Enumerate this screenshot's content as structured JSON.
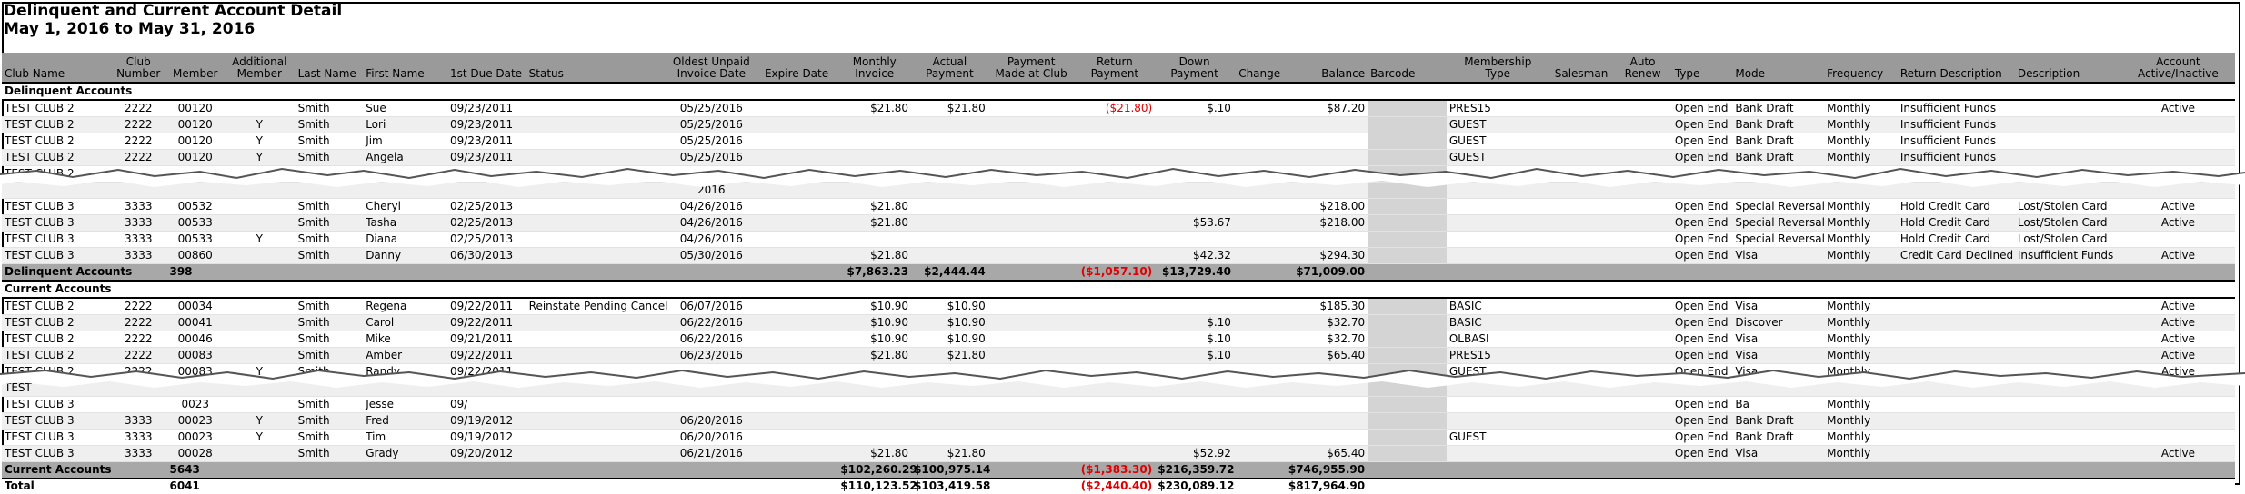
{
  "report": {
    "title": "Delinquent and Current Account Detail",
    "date_range": "May 1, 2016 to May 31, 2016"
  },
  "columns": [
    "Club Name",
    "Club Number",
    "Member",
    "Additional Member",
    "Last Name",
    "First Name",
    "1st Due Date",
    "Status",
    "Oldest Unpaid Invoice Date",
    "Expire Date",
    "Monthly Invoice",
    "Actual Payment",
    "Payment Made at Club",
    "Return Payment",
    "Down Payment",
    "Change",
    "Balance",
    "Barcode",
    "Membership Type",
    "Salesman",
    "Auto Renew",
    "Type",
    "Mode",
    "Frequency",
    "Return Description",
    "Description",
    "Account Active/Inactive"
  ],
  "header_labels": {
    "club_name": "Club Name",
    "club_number_1": "Club",
    "club_number_2": "Number",
    "member": "Member",
    "additional_1": "Additional",
    "additional_2": "Member",
    "last_name": "Last Name",
    "first_name": "First Name",
    "first_due": "1st Due Date",
    "status": "Status",
    "oldest_1": "Oldest Unpaid",
    "oldest_2": "Invoice Date",
    "expire": "Expire Date",
    "monthly_1": "Monthly",
    "monthly_2": "Invoice",
    "actual_1": "Actual",
    "actual_2": "Payment",
    "made_1": "Payment",
    "made_2": "Made at Club",
    "return_1": "Return",
    "return_2": "Payment",
    "down_1": "Down",
    "down_2": "Payment",
    "change": "Change",
    "balance": "Balance",
    "barcode": "Barcode",
    "mtype_1": "Membership",
    "mtype_2": "Type",
    "salesman": "Salesman",
    "auto_1": "Auto",
    "auto_2": "Renew",
    "type": "Type",
    "mode": "Mode",
    "frequency": "Frequency",
    "return_desc": "Return Description",
    "description": "Description",
    "active_1": "Account",
    "active_2": "Active/Inactive"
  },
  "sections": {
    "delinquent": {
      "label": "Delinquent Accounts",
      "rows": [
        {
          "club": "TEST CLUB 2",
          "num": "2222",
          "member": "00120",
          "add": "",
          "last": "Smith",
          "first": "Sue",
          "due": "09/23/2011",
          "status": "",
          "oldest": "05/25/2016",
          "expire": "",
          "monthly": "$21.80",
          "actual": "$21.80",
          "made": "",
          "ret": "($21.80)",
          "down": "$.10",
          "change": "",
          "balance": "$87.20",
          "mtype": "PRES15",
          "sales": "",
          "auto": "",
          "type": "Open End",
          "mode": "Bank Draft",
          "freq": "Monthly",
          "retdesc": "Insufficient Funds",
          "desc": "",
          "active": "Active"
        },
        {
          "club": "TEST CLUB 2",
          "num": "2222",
          "member": "00120",
          "add": "Y",
          "last": "Smith",
          "first": "Lori",
          "due": "09/23/2011",
          "status": "",
          "oldest": "05/25/2016",
          "expire": "",
          "monthly": "",
          "actual": "",
          "made": "",
          "ret": "",
          "down": "",
          "change": "",
          "balance": "",
          "mtype": "GUEST",
          "sales": "",
          "auto": "",
          "type": "Open End",
          "mode": "Bank Draft",
          "freq": "Monthly",
          "retdesc": "Insufficient Funds",
          "desc": "",
          "active": ""
        },
        {
          "club": "TEST CLUB 2",
          "num": "2222",
          "member": "00120",
          "add": "Y",
          "last": "Smith",
          "first": "Jim",
          "due": "09/23/2011",
          "status": "",
          "oldest": "05/25/2016",
          "expire": "",
          "monthly": "",
          "actual": "",
          "made": "",
          "ret": "",
          "down": "",
          "change": "",
          "balance": "",
          "mtype": "GUEST",
          "sales": "",
          "auto": "",
          "type": "Open End",
          "mode": "Bank Draft",
          "freq": "Monthly",
          "retdesc": "Insufficient Funds",
          "desc": "",
          "active": ""
        },
        {
          "club": "TEST CLUB 2",
          "num": "2222",
          "member": "00120",
          "add": "Y",
          "last": "Smith",
          "first": "Angela",
          "due": "09/23/2011",
          "status": "",
          "oldest": "05/25/2016",
          "expire": "",
          "monthly": "",
          "actual": "",
          "made": "",
          "ret": "",
          "down": "",
          "change": "",
          "balance": "",
          "mtype": "GUEST",
          "sales": "",
          "auto": "",
          "type": "Open End",
          "mode": "Bank Draft",
          "freq": "Monthly",
          "retdesc": "Insufficient Funds",
          "desc": "",
          "active": ""
        },
        {
          "club": "TEST CLUB 2",
          "num": "",
          "member": "",
          "add": "",
          "last": "",
          "first": "",
          "due": "",
          "status": "",
          "oldest": "",
          "expire": "",
          "monthly": "",
          "actual": "",
          "made": "",
          "ret": "",
          "down": "",
          "change": "",
          "balance": "",
          "mtype": "",
          "sales": "",
          "auto": "",
          "type": "",
          "mode": "",
          "freq": "",
          "retdesc": "",
          "desc": "",
          "active": ""
        },
        {
          "club": "",
          "num": "",
          "member": "",
          "add": "",
          "last": "",
          "first": "",
          "due": "",
          "status": "",
          "oldest": "2016",
          "expire": "",
          "monthly": "",
          "actual": "",
          "made": "",
          "ret": "",
          "down": "",
          "change": "",
          "balance": "",
          "mtype": "",
          "sales": "",
          "auto": "",
          "type": "",
          "mode": "",
          "freq": "",
          "retdesc": "",
          "desc": "",
          "active": ""
        },
        {
          "club": "TEST CLUB 3",
          "num": "3333",
          "member": "00532",
          "add": "",
          "last": "Smith",
          "first": "Cheryl",
          "due": "02/25/2013",
          "status": "",
          "oldest": "04/26/2016",
          "expire": "",
          "monthly": "$21.80",
          "actual": "",
          "made": "",
          "ret": "",
          "down": "",
          "change": "",
          "balance": "$218.00",
          "mtype": "",
          "sales": "",
          "auto": "",
          "type": "Open End",
          "mode": "Special Reversal",
          "freq": "Monthly",
          "retdesc": "Hold Credit Card",
          "desc": "Lost/Stolen Card",
          "active": "Active"
        },
        {
          "club": "TEST CLUB 3",
          "num": "3333",
          "member": "00533",
          "add": "",
          "last": "Smith",
          "first": "Tasha",
          "due": "02/25/2013",
          "status": "",
          "oldest": "04/26/2016",
          "expire": "",
          "monthly": "$21.80",
          "actual": "",
          "made": "",
          "ret": "",
          "down": "$53.67",
          "change": "",
          "balance": "$218.00",
          "mtype": "",
          "sales": "",
          "auto": "",
          "type": "Open End",
          "mode": "Special Reversal",
          "freq": "Monthly",
          "retdesc": "Hold Credit Card",
          "desc": "Lost/Stolen Card",
          "active": "Active"
        },
        {
          "club": "TEST CLUB 3",
          "num": "3333",
          "member": "00533",
          "add": "Y",
          "last": "Smith",
          "first": "Diana",
          "due": "02/25/2013",
          "status": "",
          "oldest": "04/26/2016",
          "expire": "",
          "monthly": "",
          "actual": "",
          "made": "",
          "ret": "",
          "down": "",
          "change": "",
          "balance": "",
          "mtype": "",
          "sales": "",
          "auto": "",
          "type": "Open End",
          "mode": "Special Reversal",
          "freq": "Monthly",
          "retdesc": "Hold Credit Card",
          "desc": "Lost/Stolen Card",
          "active": ""
        },
        {
          "club": "TEST CLUB 3",
          "num": "3333",
          "member": "00860",
          "add": "",
          "last": "Smith",
          "first": "Danny",
          "due": "06/30/2013",
          "status": "",
          "oldest": "05/30/2016",
          "expire": "",
          "monthly": "$21.80",
          "actual": "",
          "made": "",
          "ret": "",
          "down": "$42.32",
          "change": "",
          "balance": "$294.30",
          "mtype": "",
          "sales": "",
          "auto": "",
          "type": "Open End",
          "mode": "Visa",
          "freq": "Monthly",
          "retdesc": "Credit Card Declined",
          "desc": "Insufficient Funds",
          "active": "Active"
        }
      ],
      "subtotal": {
        "label": "Delinquent Accounts",
        "count": "398",
        "monthly": "$7,863.23",
        "actual": "$2,444.44",
        "ret": "($1,057.10)",
        "down": "$13,729.40",
        "balance": "$71,009.00"
      }
    },
    "current": {
      "label": "Current Accounts",
      "rows": [
        {
          "club": "TEST CLUB 2",
          "num": "2222",
          "member": "00034",
          "add": "",
          "last": "Smith",
          "first": "Regena",
          "due": "09/22/2011",
          "status": "Reinstate Pending Cancel",
          "oldest": "06/07/2016",
          "expire": "",
          "monthly": "$10.90",
          "actual": "$10.90",
          "made": "",
          "ret": "",
          "down": "",
          "change": "",
          "balance": "$185.30",
          "mtype": "BASIC",
          "sales": "",
          "auto": "",
          "type": "Open End",
          "mode": "Visa",
          "freq": "Monthly",
          "retdesc": "",
          "desc": "",
          "active": "Active"
        },
        {
          "club": "TEST CLUB 2",
          "num": "2222",
          "member": "00041",
          "add": "",
          "last": "Smith",
          "first": "Carol",
          "due": "09/22/2011",
          "status": "",
          "oldest": "06/22/2016",
          "expire": "",
          "monthly": "$10.90",
          "actual": "$10.90",
          "made": "",
          "ret": "",
          "down": "$.10",
          "change": "",
          "balance": "$32.70",
          "mtype": "BASIC",
          "sales": "",
          "auto": "",
          "type": "Open End",
          "mode": "Discover",
          "freq": "Monthly",
          "retdesc": "",
          "desc": "",
          "active": "Active"
        },
        {
          "club": "TEST CLUB 2",
          "num": "2222",
          "member": "00046",
          "add": "",
          "last": "Smith",
          "first": "Mike",
          "due": "09/21/2011",
          "status": "",
          "oldest": "06/22/2016",
          "expire": "",
          "monthly": "$10.90",
          "actual": "$10.90",
          "made": "",
          "ret": "",
          "down": "$.10",
          "change": "",
          "balance": "$32.70",
          "mtype": "OLBASI",
          "sales": "",
          "auto": "",
          "type": "Open End",
          "mode": "Visa",
          "freq": "Monthly",
          "retdesc": "",
          "desc": "",
          "active": "Active"
        },
        {
          "club": "TEST CLUB 2",
          "num": "2222",
          "member": "00083",
          "add": "",
          "last": "Smith",
          "first": "Amber",
          "due": "09/22/2011",
          "status": "",
          "oldest": "06/23/2016",
          "expire": "",
          "monthly": "$21.80",
          "actual": "$21.80",
          "made": "",
          "ret": "",
          "down": "$.10",
          "change": "",
          "balance": "$65.40",
          "mtype": "PRES15",
          "sales": "",
          "auto": "",
          "type": "Open End",
          "mode": "Visa",
          "freq": "Monthly",
          "retdesc": "",
          "desc": "",
          "active": "Active"
        },
        {
          "club": "TEST CLUB 2",
          "num": "2222",
          "member": "00083",
          "add": "Y",
          "last": "Smith",
          "first": "Randy",
          "due": "09/22/2011",
          "status": "",
          "oldest": "",
          "expire": "",
          "monthly": "",
          "actual": "",
          "made": "",
          "ret": "",
          "down": "",
          "change": "",
          "balance": "",
          "mtype": "GUEST",
          "sales": "",
          "auto": "",
          "type": "Open End",
          "mode": "Visa",
          "freq": "Monthly",
          "retdesc": "",
          "desc": "",
          "active": "Active"
        },
        {
          "club": "TEST",
          "num": "",
          "member": "",
          "add": "",
          "last": "",
          "first": "",
          "due": "",
          "status": "",
          "oldest": "",
          "expire": "",
          "monthly": "",
          "actual": "",
          "made": "",
          "ret": "",
          "down": "",
          "change": "",
          "balance": "",
          "mtype": "",
          "sales": "",
          "auto": "",
          "type": "",
          "mode": "",
          "freq": "",
          "retdesc": "",
          "desc": "",
          "active": ""
        },
        {
          "club": "TEST CLUB 3",
          "num": "",
          "member": "0023",
          "add": "",
          "last": "Smith",
          "first": "Jesse",
          "due": "09/",
          "status": "",
          "oldest": "",
          "expire": "",
          "monthly": "",
          "actual": "",
          "made": "",
          "ret": "",
          "down": "",
          "change": "",
          "balance": "",
          "mtype": "",
          "sales": "",
          "auto": "",
          "type": "Open End",
          "mode": "Ba",
          "freq": "Monthly",
          "retdesc": "",
          "desc": "",
          "active": ""
        },
        {
          "club": "TEST CLUB 3",
          "num": "3333",
          "member": "00023",
          "add": "Y",
          "last": "Smith",
          "first": "Fred",
          "due": "09/19/2012",
          "status": "",
          "oldest": "06/20/2016",
          "expire": "",
          "monthly": "",
          "actual": "",
          "made": "",
          "ret": "",
          "down": "",
          "change": "",
          "balance": "",
          "mtype": "",
          "sales": "",
          "auto": "",
          "type": "Open End",
          "mode": "Bank Draft",
          "freq": "Monthly",
          "retdesc": "",
          "desc": "",
          "active": ""
        },
        {
          "club": "TEST CLUB 3",
          "num": "3333",
          "member": "00023",
          "add": "Y",
          "last": "Smith",
          "first": "Tim",
          "due": "09/19/2012",
          "status": "",
          "oldest": "06/20/2016",
          "expire": "",
          "monthly": "",
          "actual": "",
          "made": "",
          "ret": "",
          "down": "",
          "change": "",
          "balance": "",
          "mtype": "GUEST",
          "sales": "",
          "auto": "",
          "type": "Open End",
          "mode": "Bank Draft",
          "freq": "Monthly",
          "retdesc": "",
          "desc": "",
          "active": ""
        },
        {
          "club": "TEST CLUB 3",
          "num": "3333",
          "member": "00028",
          "add": "",
          "last": "Smith",
          "first": "Grady",
          "due": "09/20/2012",
          "status": "",
          "oldest": "06/21/2016",
          "expire": "",
          "monthly": "$21.80",
          "actual": "$21.80",
          "made": "",
          "ret": "",
          "down": "$52.92",
          "change": "",
          "balance": "$65.40",
          "mtype": "",
          "sales": "",
          "auto": "",
          "type": "Open End",
          "mode": "Visa",
          "freq": "Monthly",
          "retdesc": "",
          "desc": "",
          "active": "Active"
        }
      ],
      "subtotal": {
        "label": "Current Accounts",
        "count": "5643",
        "monthly": "$102,260.29",
        "actual": "$100,975.14",
        "ret": "($1,383.30)",
        "down": "$216,359.72",
        "balance": "$746,955.90"
      }
    }
  },
  "total": {
    "label": "Total",
    "count": "6041",
    "monthly": "$110,123.52",
    "actual": "$103,419.58",
    "ret": "($2,440.40)",
    "down": "$230,089.12",
    "balance": "$817,964.90"
  },
  "colors": {
    "header_bg": "#9a9a9a",
    "subtotal_bg": "#a8a8a8",
    "negative": "#e00000",
    "alt_row": "#efefef"
  }
}
